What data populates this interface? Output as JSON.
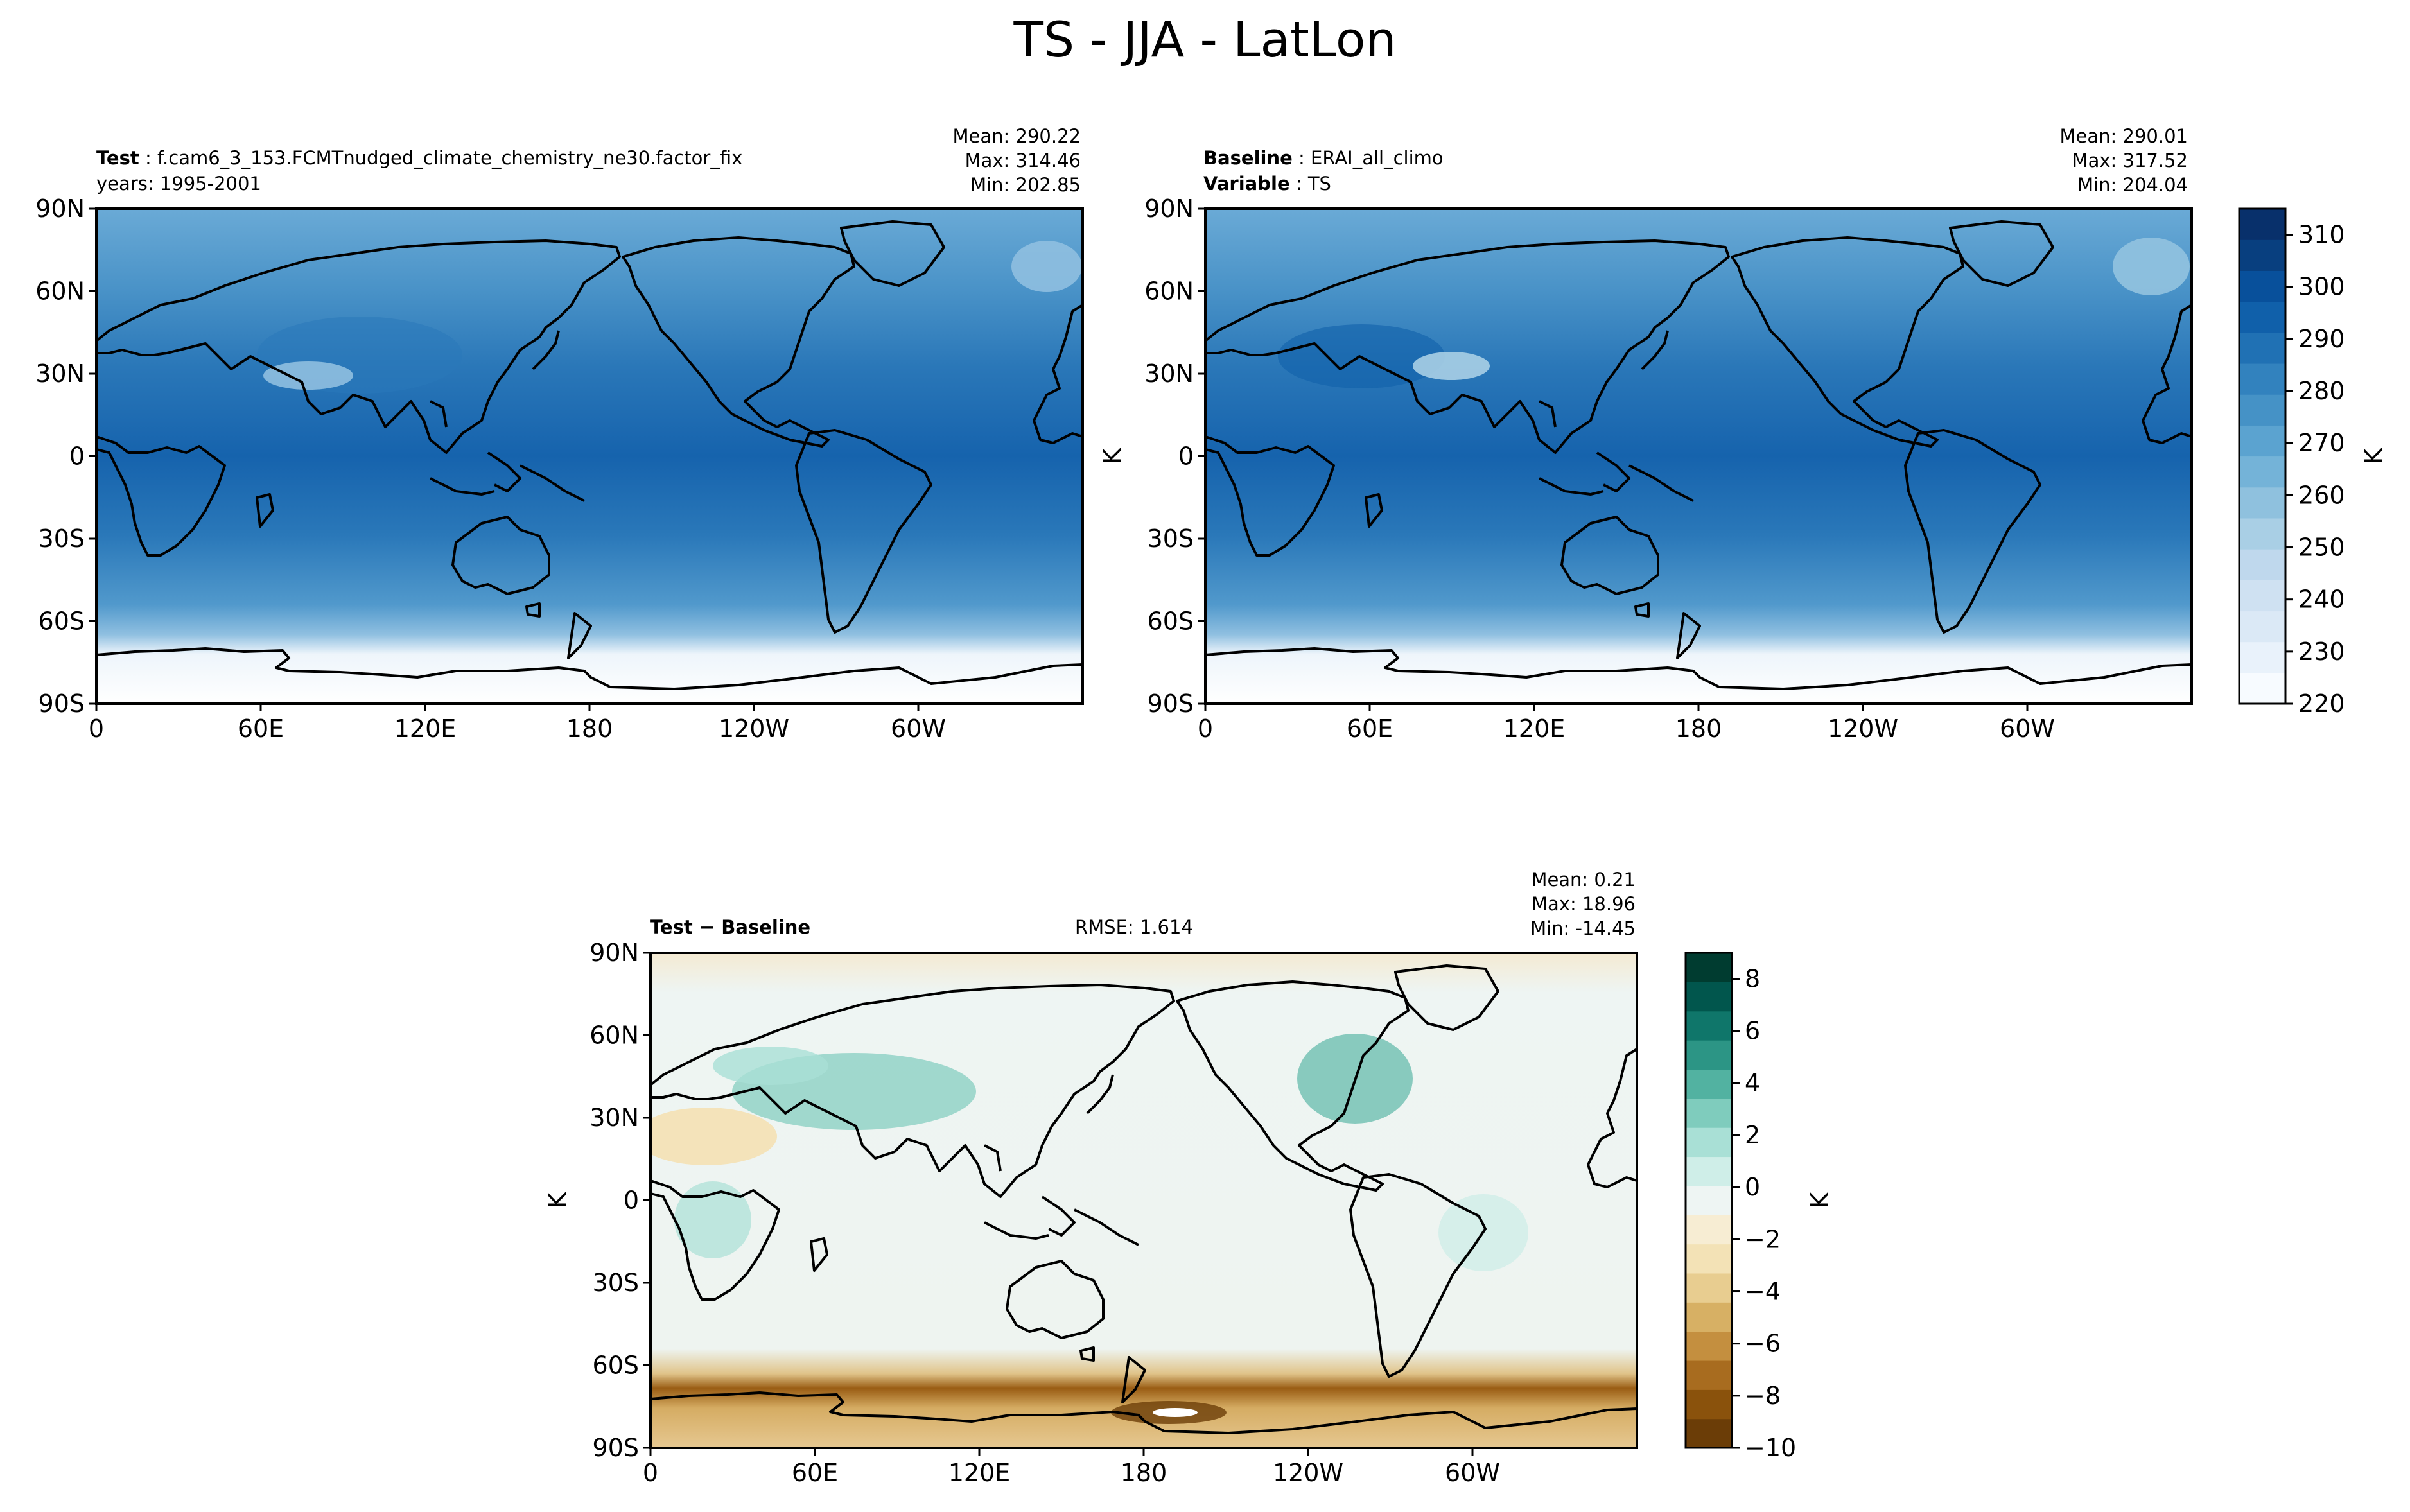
{
  "title": "TS - JJA - LatLon",
  "panels": [
    {
      "id": "test",
      "label_bold": "Test",
      "label_text": "f.cam6_3_153.FCMTnudged_climate_chemistry_ne30.factor_fix",
      "line2_bold": "",
      "line2_text": "years: 1995-2001",
      "mean": "Mean: 290.22",
      "max": "Max: 314.46",
      "min": "Min: 202.85",
      "ylabel": ""
    },
    {
      "id": "baseline",
      "label_bold": "Baseline",
      "label_text": "ERAI_all_climo",
      "line2_bold": "Variable",
      "line2_text": "TS",
      "mean": "Mean: 290.01",
      "max": "Max: 317.52",
      "min": "Min: 204.04",
      "ylabel": "K"
    },
    {
      "id": "diff",
      "label_bold": "Test − Baseline",
      "rmse": "RMSE: 1.614",
      "mean": "Mean:  0.21",
      "max": "Max: 18.96",
      "min": "Min: -14.45",
      "ylabel": "K"
    }
  ],
  "lon_ticks": [
    "0",
    "60E",
    "120E",
    "180",
    "120W",
    "60W"
  ],
  "lat_ticks": [
    "90N",
    "60N",
    "30N",
    "0",
    "30S",
    "60S",
    "90S"
  ],
  "colorbars": [
    {
      "id": "abs",
      "label": "K",
      "ticks": [
        "310",
        "300",
        "290",
        "280",
        "270",
        "260",
        "250",
        "240",
        "230",
        "220"
      ],
      "colors": [
        "#f7fbff",
        "#e9f2fb",
        "#dbe9f6",
        "#cfe1f2",
        "#bfd8ed",
        "#a9cfe5",
        "#8fc1de",
        "#74b3d8",
        "#5ba3d0",
        "#4592c6",
        "#3282be",
        "#2071b4",
        "#1060aa",
        "#08509b",
        "#083f7f",
        "#08306b"
      ]
    },
    {
      "id": "diff",
      "label": "K",
      "ticks": [
        "8",
        "6",
        "4",
        "2",
        "0",
        "−2",
        "−4",
        "−6",
        "−8",
        "−10"
      ],
      "colors": [
        "#6b3d07",
        "#8a520c",
        "#a86c1f",
        "#c48f3f",
        "#d7b064",
        "#e8cd90",
        "#f3e2b6",
        "#f7edd3",
        "#eef5f3",
        "#cfeee8",
        "#a9e0d6",
        "#7fccbd",
        "#52b2a1",
        "#2c9585",
        "#0f766a",
        "#01564d",
        "#003c30"
      ]
    }
  ],
  "chart_data": [
    {
      "type": "heatmap",
      "title": "Test: f.cam6_3_153.FCMTnudged_climate_chemistry_ne30.factor_fix",
      "subtitle": "years: 1995-2001",
      "variable": "TS",
      "season": "JJA",
      "projection": "LatLon",
      "stats": {
        "mean": 290.22,
        "max": 314.46,
        "min": 202.85
      },
      "x_ticks": [
        "0",
        "60E",
        "120E",
        "180",
        "120W",
        "60W"
      ],
      "y_ticks": [
        "90N",
        "60N",
        "30N",
        "0",
        "30S",
        "60S",
        "90S"
      ],
      "colorbar": {
        "range": [
          220,
          315
        ],
        "label": "K",
        "colormap": "Blues"
      }
    },
    {
      "type": "heatmap",
      "title": "Baseline: ERAI_all_climo",
      "subtitle": "Variable: TS",
      "variable": "TS",
      "season": "JJA",
      "projection": "LatLon",
      "stats": {
        "mean": 290.01,
        "max": 317.52,
        "min": 204.04
      },
      "x_ticks": [
        "0",
        "60E",
        "120E",
        "180",
        "120W",
        "60W"
      ],
      "y_ticks": [
        "90N",
        "60N",
        "30N",
        "0",
        "30S",
        "60S",
        "90S"
      ],
      "ylabel": "K",
      "colorbar": {
        "range": [
          220,
          315
        ],
        "label": "K",
        "colormap": "Blues"
      }
    },
    {
      "type": "heatmap",
      "title": "Test − Baseline",
      "variable": "TS",
      "season": "JJA",
      "projection": "LatLon",
      "rmse": 1.614,
      "stats": {
        "mean": 0.21,
        "max": 18.96,
        "min": -14.45
      },
      "x_ticks": [
        "0",
        "60E",
        "120E",
        "180",
        "120W",
        "60W"
      ],
      "y_ticks": [
        "90N",
        "60N",
        "30N",
        "0",
        "30S",
        "60S",
        "90S"
      ],
      "ylabel": "K",
      "colorbar": {
        "range": [
          -10,
          9
        ],
        "label": "K",
        "colormap": "BrBG"
      }
    }
  ]
}
